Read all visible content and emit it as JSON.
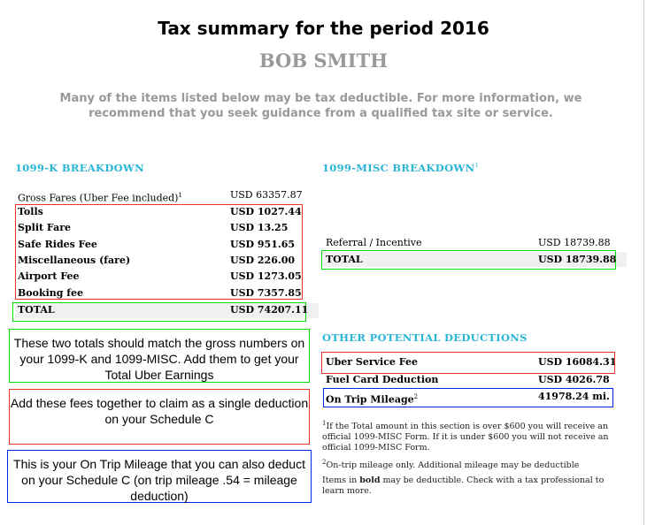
{
  "title": "Tax summary for the period 2016",
  "name": "BOB SMITH",
  "intro": "Many of the items listed below may be tax deductible. For more information, we recommend that you seek guidance from a qualified tax site or service.",
  "k": {
    "heading": "1099-K BREAKDOWN",
    "gross": {
      "label": "Gross Fares (Uber Fee included)",
      "sup": "1",
      "value": "USD 63357.87"
    },
    "items": [
      {
        "label": "Tolls",
        "value": "USD 1027.44"
      },
      {
        "label": "Split Fare",
        "value": "USD 13.25"
      },
      {
        "label": "Safe Rides Fee",
        "value": "USD 951.65"
      },
      {
        "label": "Miscellaneous (fare)",
        "value": "USD 226.00"
      },
      {
        "label": "Airport Fee",
        "value": "USD 1273.05"
      },
      {
        "label": "Booking fee",
        "value": "USD 7357.85"
      }
    ],
    "total": {
      "label": "TOTAL",
      "value": "USD 74207.11"
    }
  },
  "misc": {
    "heading": "1099-MISC BREAKDOWN",
    "sup": "1",
    "referral": {
      "label": "Referral / Incentive",
      "value": "USD 18739.88"
    },
    "total": {
      "label": "TOTAL",
      "value": "USD 18739.88"
    }
  },
  "other": {
    "heading": "OTHER POTENTIAL DEDUCTIONS",
    "items": [
      {
        "label": "Uber Service Fee",
        "value": "USD 16084.31"
      },
      {
        "label": "Fuel Card Deduction",
        "value": "USD 4026.78"
      },
      {
        "label": "On Trip Mileage",
        "sup": "2",
        "value": "41978.24 mi."
      }
    ]
  },
  "footnotes": {
    "f1sup": "1",
    "f1": "If the Total amount in this section is over $600 you will receive an official 1099-MISC Form. If it is under $600 you will not receive an official 1099-MISC Form.",
    "f2sup": "2",
    "f2": "On-trip mileage only. Additional mileage may be deductible",
    "f3a": "Items in ",
    "f3b": "bold",
    "f3c": " may be deductible. Check with a tax professional to learn more."
  },
  "notes": {
    "green": "These two totals should match the gross numbers on your 1099-K and 1099-MISC. Add them to get your Total Uber Earnings",
    "red": "Add these fees together to claim as a single deduction on your Schedule C",
    "blue": "This is your On Trip Mileage that you can also deduct on your Schedule C (on trip mileage .54 = mileage deduction)"
  },
  "colors": {
    "heading": "#29b6d6",
    "green": "#00e000",
    "red": "#e8322a",
    "blue": "#0026e6"
  }
}
